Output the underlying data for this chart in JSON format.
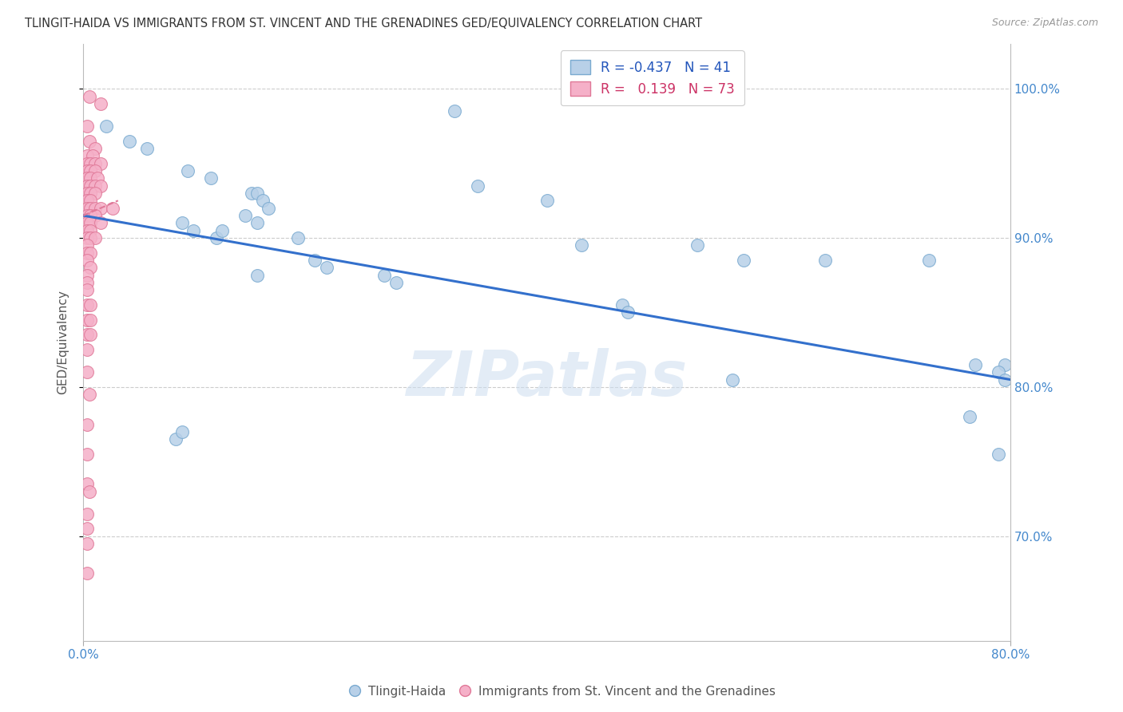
{
  "title": "TLINGIT-HAIDA VS IMMIGRANTS FROM ST. VINCENT AND THE GRENADINES GED/EQUIVALENCY CORRELATION CHART",
  "source": "Source: ZipAtlas.com",
  "ylabel": "GED/Equivalency",
  "watermark": "ZIPatlas",
  "xlim": [
    0.0,
    80.0
  ],
  "ylim": [
    63.0,
    103.0
  ],
  "yticks": [
    70.0,
    80.0,
    90.0,
    100.0
  ],
  "xticks": [
    0.0,
    80.0
  ],
  "series1_label": "Tlingit-Haida",
  "series1_color": "#b8d0e8",
  "series1_edge": "#7aaad0",
  "series1_R": "-0.437",
  "series1_N": "41",
  "series2_label": "Immigrants from St. Vincent and the Grenadines",
  "series2_color": "#f5b0c8",
  "series2_edge": "#e07898",
  "series2_R": "0.139",
  "series2_N": "73",
  "trendline1_color": "#3370cc",
  "trendline2_color": "#e07898",
  "blue_points": [
    [
      2.0,
      97.5
    ],
    [
      4.0,
      96.5
    ],
    [
      5.5,
      96.0
    ],
    [
      9.0,
      94.5
    ],
    [
      11.0,
      94.0
    ],
    [
      14.5,
      93.0
    ],
    [
      15.0,
      93.0
    ],
    [
      15.5,
      92.5
    ],
    [
      16.0,
      92.0
    ],
    [
      14.0,
      91.5
    ],
    [
      15.0,
      91.0
    ],
    [
      8.5,
      91.0
    ],
    [
      9.5,
      90.5
    ],
    [
      11.5,
      90.0
    ],
    [
      12.0,
      90.5
    ],
    [
      18.5,
      90.0
    ],
    [
      20.0,
      88.5
    ],
    [
      21.0,
      88.0
    ],
    [
      26.0,
      87.5
    ],
    [
      27.0,
      87.0
    ],
    [
      32.0,
      98.5
    ],
    [
      34.0,
      93.5
    ],
    [
      40.0,
      92.5
    ],
    [
      43.0,
      89.5
    ],
    [
      46.5,
      85.5
    ],
    [
      47.0,
      85.0
    ],
    [
      53.0,
      89.5
    ],
    [
      57.0,
      88.5
    ],
    [
      64.0,
      88.5
    ],
    [
      73.0,
      88.5
    ],
    [
      77.0,
      81.5
    ],
    [
      79.0,
      75.5
    ],
    [
      79.5,
      81.5
    ],
    [
      8.0,
      76.5
    ],
    [
      8.5,
      77.0
    ],
    [
      15.0,
      87.5
    ],
    [
      56.0,
      80.5
    ],
    [
      76.5,
      78.0
    ],
    [
      79.0,
      81.0
    ],
    [
      79.5,
      80.5
    ]
  ],
  "pink_points": [
    [
      0.5,
      99.5
    ],
    [
      1.5,
      99.0
    ],
    [
      0.3,
      97.5
    ],
    [
      0.5,
      96.5
    ],
    [
      1.0,
      96.0
    ],
    [
      0.3,
      95.5
    ],
    [
      0.8,
      95.5
    ],
    [
      0.3,
      95.0
    ],
    [
      0.6,
      95.0
    ],
    [
      1.0,
      95.0
    ],
    [
      1.5,
      95.0
    ],
    [
      0.3,
      94.5
    ],
    [
      0.6,
      94.5
    ],
    [
      1.0,
      94.5
    ],
    [
      0.3,
      94.0
    ],
    [
      0.6,
      94.0
    ],
    [
      1.2,
      94.0
    ],
    [
      0.3,
      93.5
    ],
    [
      0.6,
      93.5
    ],
    [
      1.0,
      93.5
    ],
    [
      1.5,
      93.5
    ],
    [
      0.3,
      93.0
    ],
    [
      0.6,
      93.0
    ],
    [
      1.0,
      93.0
    ],
    [
      0.3,
      92.5
    ],
    [
      0.6,
      92.5
    ],
    [
      0.3,
      92.0
    ],
    [
      0.6,
      92.0
    ],
    [
      1.0,
      92.0
    ],
    [
      1.5,
      92.0
    ],
    [
      2.5,
      92.0
    ],
    [
      0.3,
      91.5
    ],
    [
      0.6,
      91.5
    ],
    [
      1.0,
      91.5
    ],
    [
      0.3,
      91.0
    ],
    [
      0.6,
      91.0
    ],
    [
      1.5,
      91.0
    ],
    [
      0.3,
      90.5
    ],
    [
      0.6,
      90.5
    ],
    [
      0.3,
      90.0
    ],
    [
      0.6,
      90.0
    ],
    [
      1.0,
      90.0
    ],
    [
      0.3,
      89.5
    ],
    [
      0.3,
      89.0
    ],
    [
      0.6,
      89.0
    ],
    [
      0.3,
      88.5
    ],
    [
      0.6,
      88.0
    ],
    [
      0.3,
      87.5
    ],
    [
      0.3,
      87.0
    ],
    [
      0.3,
      86.5
    ],
    [
      0.3,
      85.5
    ],
    [
      0.6,
      85.5
    ],
    [
      0.3,
      84.5
    ],
    [
      0.6,
      84.5
    ],
    [
      0.3,
      83.5
    ],
    [
      0.6,
      83.5
    ],
    [
      0.3,
      82.5
    ],
    [
      0.3,
      81.0
    ],
    [
      0.5,
      79.5
    ],
    [
      0.3,
      77.5
    ],
    [
      0.3,
      75.5
    ],
    [
      0.3,
      73.5
    ],
    [
      0.5,
      73.0
    ],
    [
      0.3,
      71.5
    ],
    [
      0.3,
      70.5
    ],
    [
      0.3,
      69.5
    ],
    [
      0.3,
      67.5
    ]
  ],
  "trendline1_x": [
    0,
    80
  ],
  "trendline1_y": [
    91.5,
    80.5
  ],
  "trendline2_x": [
    0,
    3
  ],
  "trendline2_y": [
    91.5,
    92.5
  ]
}
